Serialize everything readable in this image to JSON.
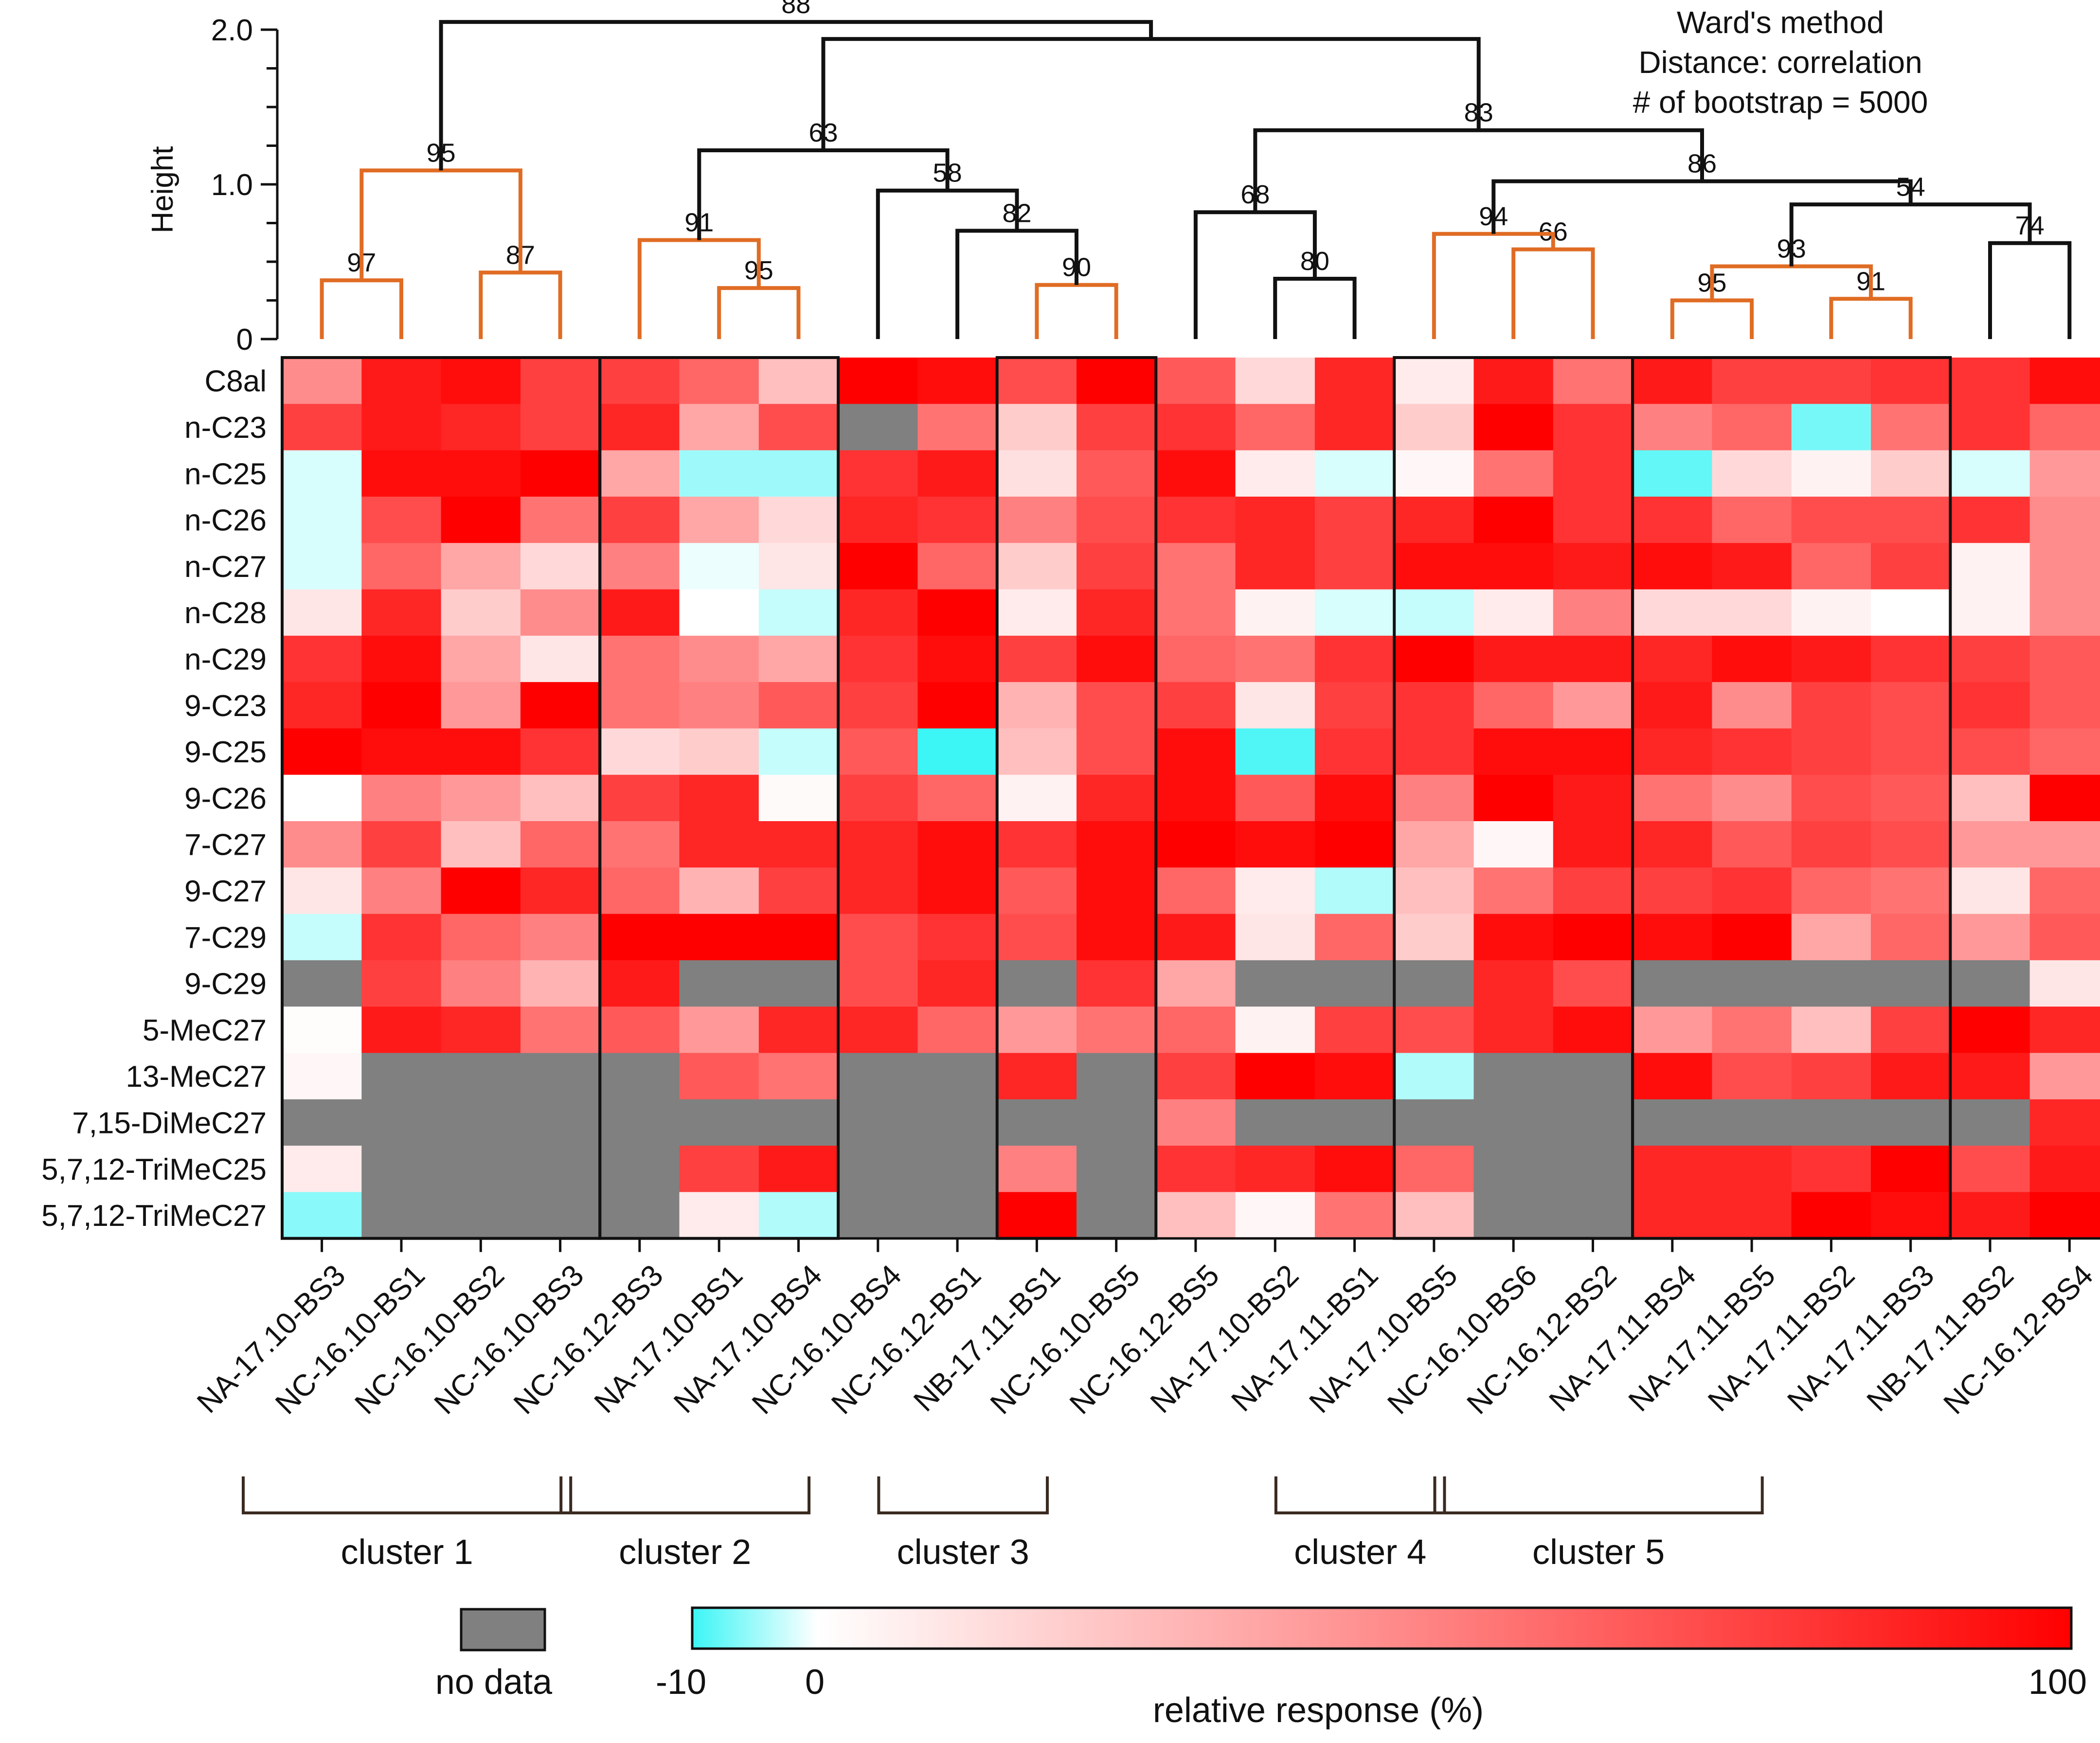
{
  "chart_data": {
    "type": "heatmap",
    "title": "",
    "method_notes": [
      "Ward's method",
      "Distance: correlation",
      "# of bootstrap = 5000"
    ],
    "dendrogram": {
      "ylabel": "Height",
      "yticks": [
        "0",
        "1.0",
        "2.0"
      ],
      "ylim": [
        0,
        2.0
      ],
      "merges": [
        {
          "id": "m1",
          "left": "L0",
          "right": "L1",
          "height": 0.38,
          "bootstrap": "97",
          "orange": true
        },
        {
          "id": "m2",
          "left": "L2",
          "right": "L3",
          "height": 0.43,
          "bootstrap": "87",
          "orange": true
        },
        {
          "id": "m3",
          "left": "m1",
          "right": "m2",
          "height": 1.09,
          "bootstrap": "95",
          "orange": true
        },
        {
          "id": "m4",
          "left": "L5",
          "right": "L6",
          "height": 0.33,
          "bootstrap": "95",
          "orange": true
        },
        {
          "id": "m5",
          "left": "L4",
          "right": "m4",
          "height": 0.64,
          "bootstrap": "91",
          "orange": true
        },
        {
          "id": "m6",
          "left": "L9",
          "right": "L10",
          "height": 0.35,
          "bootstrap": "90",
          "orange": true
        },
        {
          "id": "m7",
          "left": "L8",
          "right": "m6",
          "height": 0.7,
          "bootstrap": "82",
          "orange": false
        },
        {
          "id": "m8",
          "left": "L7",
          "right": "m7",
          "height": 0.96,
          "bootstrap": "58",
          "orange": false
        },
        {
          "id": "m9",
          "left": "m5",
          "right": "m8",
          "height": 1.22,
          "bootstrap": "63",
          "orange": false
        },
        {
          "id": "m10",
          "left": "L12",
          "right": "L13",
          "height": 0.39,
          "bootstrap": "80",
          "orange": false
        },
        {
          "id": "m11",
          "left": "L11",
          "right": "m10",
          "height": 0.82,
          "bootstrap": "68",
          "orange": false
        },
        {
          "id": "m12",
          "left": "L15",
          "right": "L16",
          "height": 0.58,
          "bootstrap": "66",
          "orange": true
        },
        {
          "id": "m13",
          "left": "L14",
          "right": "m12",
          "height": 0.68,
          "bootstrap": "94",
          "orange": true
        },
        {
          "id": "m14",
          "left": "L17",
          "right": "L18",
          "height": 0.25,
          "bootstrap": "95",
          "orange": true
        },
        {
          "id": "m15",
          "left": "L19",
          "right": "L20",
          "height": 0.26,
          "bootstrap": "91",
          "orange": true
        },
        {
          "id": "m16",
          "left": "m14",
          "right": "m15",
          "height": 0.47,
          "bootstrap": "93",
          "orange": true
        },
        {
          "id": "m17",
          "left": "L21",
          "right": "L22",
          "height": 0.62,
          "bootstrap": "74",
          "orange": false
        },
        {
          "id": "m18",
          "left": "m16",
          "right": "m17",
          "height": 0.87,
          "bootstrap": "54",
          "orange": false
        },
        {
          "id": "m19",
          "left": "m13",
          "right": "m18",
          "height": 1.02,
          "bootstrap": "86",
          "orange": false
        },
        {
          "id": "m20",
          "left": "m11",
          "right": "m19",
          "height": 1.35,
          "bootstrap": "83",
          "orange": false
        },
        {
          "id": "m21",
          "left": "m9",
          "right": "m20",
          "height": 1.94,
          "bootstrap": "",
          "orange": false
        },
        {
          "id": "m22",
          "left": "m3",
          "right": "m21",
          "height": 2.05,
          "bootstrap": "88",
          "orange": false
        }
      ]
    },
    "rows": [
      "C8al",
      "n-C23",
      "n-C25",
      "n-C26",
      "n-C27",
      "n-C28",
      "n-C29",
      "9-C23",
      "9-C25",
      "9-C26",
      "7-C27",
      "9-C27",
      "7-C29",
      "9-C29",
      "5-MeC27",
      "13-MeC27",
      "7,15-DiMeC27",
      "5,7,12-TriMeC25",
      "5,7,12-TriMeC27"
    ],
    "columns": [
      "NA-17.10-BS3",
      "NC-16.10-BS1",
      "NC-16.10-BS2",
      "NC-16.10-BS3",
      "NC-16.12-BS3",
      "NA-17.10-BS1",
      "NA-17.10-BS4",
      "NC-16.10-BS4",
      "NC-16.12-BS1",
      "NB-17.11-BS1",
      "NC-16.10-BS5",
      "NC-16.12-BS5",
      "NA-17.10-BS2",
      "NA-17.11-BS1",
      "NA-17.10-BS5",
      "NC-16.10-BS6",
      "NC-16.12-BS2",
      "NA-17.11-BS4",
      "NA-17.11-BS5",
      "NA-17.11-BS2",
      "NA-17.11-BS3",
      "NB-17.11-BS2",
      "NC-16.12-BS4"
    ],
    "values": [
      [
        45,
        90,
        95,
        75,
        75,
        60,
        25,
        100,
        95,
        70,
        100,
        65,
        15,
        85,
        8,
        90,
        55,
        90,
        75,
        75,
        80,
        80,
        95
      ],
      [
        75,
        90,
        85,
        75,
        85,
        35,
        70,
        null,
        55,
        20,
        75,
        80,
        60,
        85,
        20,
        100,
        80,
        50,
        60,
        -7,
        55,
        80,
        60
      ],
      [
        -2,
        95,
        95,
        100,
        35,
        -5,
        -5,
        80,
        90,
        12,
        65,
        95,
        8,
        -2,
        3,
        55,
        80,
        -8,
        15,
        5,
        20,
        -2,
        40
      ],
      [
        -2,
        70,
        100,
        55,
        75,
        35,
        15,
        85,
        80,
        50,
        70,
        80,
        85,
        75,
        85,
        100,
        80,
        80,
        60,
        70,
        70,
        80,
        45
      ],
      [
        -2,
        60,
        35,
        15,
        50,
        -1,
        10,
        100,
        60,
        20,
        75,
        55,
        85,
        75,
        95,
        95,
        90,
        95,
        90,
        60,
        75,
        5,
        45
      ],
      [
        10,
        85,
        20,
        45,
        90,
        0,
        -3,
        85,
        100,
        8,
        85,
        55,
        5,
        -2,
        -3,
        8,
        50,
        15,
        15,
        5,
        0,
        5,
        45
      ],
      [
        80,
        95,
        35,
        10,
        55,
        45,
        35,
        80,
        95,
        75,
        95,
        60,
        55,
        80,
        100,
        90,
        90,
        85,
        95,
        90,
        80,
        75,
        65
      ],
      [
        85,
        100,
        40,
        100,
        55,
        50,
        65,
        75,
        100,
        30,
        70,
        75,
        10,
        75,
        80,
        60,
        40,
        90,
        45,
        75,
        70,
        80,
        65
      ],
      [
        100,
        95,
        95,
        80,
        15,
        20,
        -3,
        65,
        -10,
        25,
        70,
        95,
        -9,
        80,
        80,
        95,
        95,
        85,
        80,
        75,
        70,
        70,
        60
      ],
      [
        0,
        50,
        40,
        25,
        75,
        85,
        2,
        75,
        60,
        5,
        85,
        95,
        65,
        95,
        50,
        100,
        90,
        55,
        45,
        70,
        65,
        25,
        100
      ],
      [
        45,
        75,
        25,
        60,
        55,
        85,
        85,
        85,
        95,
        80,
        95,
        100,
        95,
        100,
        35,
        3,
        90,
        85,
        65,
        75,
        70,
        40,
        40
      ],
      [
        10,
        50,
        100,
        85,
        60,
        30,
        75,
        85,
        95,
        65,
        95,
        60,
        8,
        -4,
        25,
        55,
        75,
        75,
        80,
        60,
        55,
        10,
        60
      ],
      [
        -3,
        80,
        60,
        50,
        100,
        100,
        100,
        70,
        80,
        70,
        95,
        90,
        10,
        60,
        20,
        95,
        100,
        95,
        100,
        35,
        60,
        40,
        65
      ],
      [
        null,
        75,
        50,
        30,
        90,
        null,
        null,
        70,
        85,
        null,
        80,
        35,
        null,
        null,
        null,
        85,
        70,
        null,
        null,
        null,
        null,
        null,
        10
      ],
      [
        1,
        90,
        85,
        55,
        65,
        40,
        85,
        85,
        60,
        40,
        55,
        60,
        5,
        75,
        70,
        85,
        95,
        40,
        55,
        25,
        75,
        100,
        85
      ],
      [
        3,
        null,
        null,
        null,
        null,
        65,
        55,
        null,
        null,
        85,
        null,
        75,
        100,
        95,
        -4,
        null,
        null,
        95,
        70,
        75,
        90,
        90,
        40
      ],
      [
        null,
        null,
        null,
        null,
        null,
        null,
        null,
        null,
        null,
        null,
        null,
        50,
        null,
        null,
        null,
        null,
        null,
        null,
        null,
        null,
        null,
        null,
        85
      ],
      [
        8,
        null,
        null,
        null,
        null,
        75,
        90,
        null,
        null,
        50,
        null,
        80,
        85,
        95,
        60,
        null,
        null,
        85,
        85,
        80,
        100,
        70,
        90
      ],
      [
        -6,
        null,
        null,
        null,
        null,
        8,
        -4,
        null,
        null,
        100,
        null,
        25,
        3,
        55,
        25,
        null,
        null,
        85,
        85,
        100,
        95,
        90,
        100
      ]
    ],
    "boxes": [
      [
        0,
        3
      ],
      [
        4,
        6
      ],
      [
        9,
        10
      ],
      [
        14,
        16
      ],
      [
        17,
        20
      ]
    ],
    "clusters": [
      {
        "label": "cluster 1",
        "from": 0,
        "to": 3
      },
      {
        "label": "cluster 2",
        "from": 4,
        "to": 6
      },
      {
        "label": "cluster 3",
        "from": 8,
        "to": 9
      },
      {
        "label": "cluster 4",
        "from": 13,
        "to": 14
      },
      {
        "label": "cluster 5",
        "from": 15,
        "to": 18
      }
    ],
    "legend": {
      "no_data_label": "no data",
      "no_data_color": "#808080",
      "colorbar_min": -10,
      "colorbar_zero": 0,
      "colorbar_max": 100,
      "tick_min_label": "-10",
      "tick_zero_label": "0",
      "tick_max_label": "100",
      "colorbar_label": "relative response (%)",
      "low_color": "#3cf5f5",
      "mid_color": "#ffffff",
      "high_color": "#ff0000"
    },
    "colors": {
      "orange_branch": "#e06c24",
      "black_branch": "#111111"
    }
  }
}
